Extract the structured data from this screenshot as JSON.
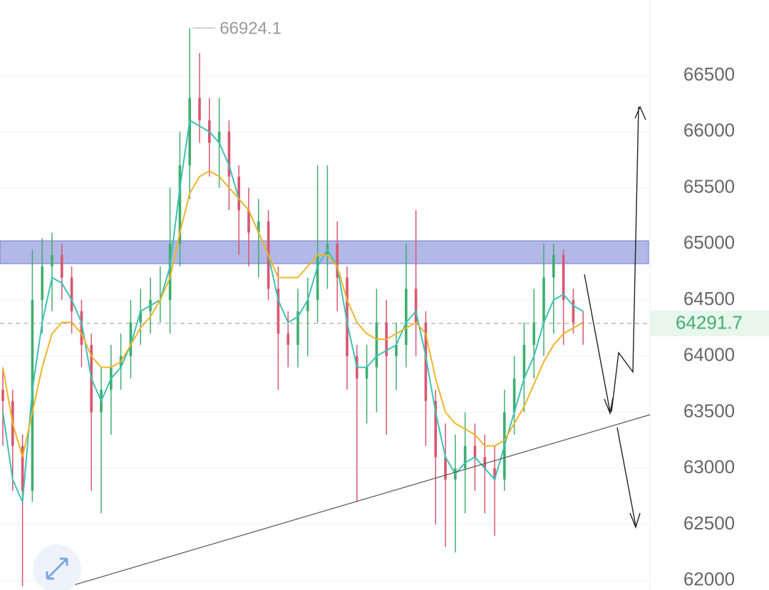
{
  "chart_data": {
    "type": "candlestick",
    "open": [
      63700,
      63600,
      63200,
      62800,
      64500,
      64800,
      64900,
      64700,
      64400,
      64100,
      63500,
      63700,
      63900,
      64000,
      64300,
      64400,
      64500,
      64500,
      65000,
      65700,
      66300,
      66100,
      65900,
      66000,
      65600,
      65300,
      65100,
      65200,
      64600,
      64200,
      64100,
      64400,
      64500,
      64900,
      65000,
      64700,
      64000,
      63800,
      63900,
      64300,
      64000,
      64100,
      64600,
      64300,
      63600,
      63100,
      62900,
      63000,
      63200,
      63100,
      63000,
      62900,
      63500,
      63800,
      64100,
      64300,
      64700,
      64900,
      64500,
      64300
    ],
    "high": [
      63900,
      63700,
      63300,
      64950,
      65050,
      65100,
      65000,
      64800,
      64500,
      64200,
      63900,
      64100,
      64200,
      64500,
      64600,
      64700,
      64800,
      65500,
      66000,
      66924.1,
      66700,
      66300,
      66300,
      66100,
      65700,
      65500,
      65400,
      65300,
      64800,
      64400,
      64600,
      64700,
      65700,
      65700,
      65200,
      64800,
      64100,
      64100,
      64600,
      64500,
      64300,
      65000,
      65300,
      64400,
      63700,
      63400,
      63300,
      63500,
      63400,
      63300,
      63200,
      63700,
      64000,
      64300,
      64600,
      65000,
      65000,
      64950,
      64600,
      64400
    ],
    "low": [
      63200,
      62800,
      61950,
      62700,
      64200,
      64400,
      64500,
      64200,
      63900,
      62800,
      62600,
      63300,
      63700,
      63800,
      64100,
      64200,
      64300,
      64200,
      64800,
      65400,
      65900,
      65600,
      65500,
      65300,
      64900,
      64800,
      64700,
      64500,
      63700,
      63900,
      63900,
      64000,
      64300,
      64600,
      64400,
      63700,
      62700,
      63400,
      63500,
      63300,
      63700,
      63900,
      64000,
      63200,
      62500,
      62300,
      62250,
      62600,
      62800,
      62600,
      62400,
      62800,
      63300,
      63500,
      63800,
      64000,
      64200,
      64100,
      64200,
      64100
    ],
    "close": [
      63600,
      63200,
      62800,
      64500,
      64800,
      64900,
      64700,
      64400,
      64100,
      63500,
      63700,
      63900,
      64000,
      64300,
      64400,
      64500,
      64500,
      65000,
      65700,
      66300,
      66100,
      65900,
      66000,
      65600,
      65300,
      65100,
      65200,
      64600,
      64200,
      64100,
      64400,
      64500,
      64900,
      65000,
      64700,
      64000,
      63800,
      63900,
      64300,
      64000,
      64100,
      64600,
      64300,
      63600,
      63100,
      62900,
      63000,
      63200,
      63100,
      63000,
      62900,
      63500,
      63800,
      64100,
      64300,
      64700,
      64900,
      64500,
      64300,
      64291.7
    ],
    "up_color": "#3fae6e",
    "down_color": "#d9566f",
    "moving_averages": [
      {
        "color": "#3cc2b4",
        "values": [
          63500,
          62900,
          62700,
          63700,
          64300,
          64700,
          64650,
          64500,
          64300,
          63800,
          63600,
          63800,
          63900,
          64100,
          64400,
          64450,
          64500,
          64800,
          65500,
          66100,
          66050,
          66000,
          65900,
          65700,
          65400,
          65300,
          65100,
          64900,
          64500,
          64300,
          64350,
          64500,
          64800,
          64950,
          64800,
          64300,
          63900,
          63900,
          64000,
          64050,
          64100,
          64300,
          64400,
          64000,
          63500,
          63100,
          62950,
          63050,
          63100,
          63000,
          62900,
          63200,
          63500,
          63800,
          64000,
          64300,
          64500,
          64550,
          64450,
          64400
        ]
      },
      {
        "color": "#f0b428",
        "values": [
          63900,
          63400,
          63100,
          63500,
          63900,
          64200,
          64300,
          64300,
          64200,
          64000,
          63900,
          63900,
          63950,
          64100,
          64250,
          64350,
          64500,
          64700,
          65100,
          65450,
          65600,
          65650,
          65600,
          65500,
          65400,
          65300,
          65100,
          64900,
          64700,
          64700,
          64700,
          64800,
          64900,
          64900,
          64800,
          64500,
          64300,
          64200,
          64150,
          64150,
          64200,
          64250,
          64300,
          64200,
          63800,
          63500,
          63400,
          63350,
          63300,
          63200,
          63200,
          63250,
          63400,
          63550,
          63750,
          63950,
          64100,
          64200,
          64250,
          64300
        ]
      }
    ],
    "last_price": 64291.7,
    "ylim": [
      61916,
      67173
    ],
    "yticks": [
      62000,
      62500,
      63000,
      63500,
      64000,
      64500,
      65000,
      65500,
      66000,
      66500
    ],
    "grid": true
  }
}
